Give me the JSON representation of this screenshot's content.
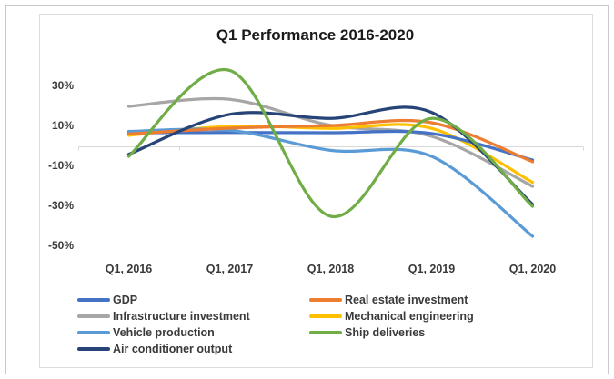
{
  "window": {
    "background": "#ffffff",
    "frame_border_color": "#c9c9c9",
    "chart_border_color": "#dcdcdc"
  },
  "chart_data": {
    "type": "line",
    "title": "Q1 Performance 2016-2020",
    "categories": [
      "Q1, 2016",
      "Q1, 2017",
      "Q1, 2018",
      "Q1, 2019",
      "Q1, 2020"
    ],
    "xlabel": "",
    "ylabel": "",
    "ylim": [
      -55,
      42
    ],
    "y_ticks": [
      {
        "label": "30%",
        "value": 30
      },
      {
        "label": "10%",
        "value": 10
      },
      {
        "label": "-10%",
        "value": -10
      },
      {
        "label": "-30%",
        "value": -30
      },
      {
        "label": "-50%",
        "value": -50
      }
    ],
    "grid": "zero-axis-line-only",
    "legend_position": "bottom",
    "legend_columns": 2,
    "smooth_lines": true,
    "colors": {
      "axis_line": "#d9d9d9",
      "tick_label": "#3a3a3a",
      "title": "#1a1a1a"
    },
    "series": [
      {
        "name": "GDP",
        "color": "#4472C4",
        "values": [
          6.8,
          6.9,
          6.8,
          6.4,
          -6.8
        ]
      },
      {
        "name": "Real estate investment",
        "color": "#ED7D31",
        "values": [
          6.2,
          9.1,
          10.4,
          11.8,
          -7.7
        ]
      },
      {
        "name": "Infrastructure investment",
        "color": "#A6A6A6",
        "values": [
          20,
          23.5,
          10.5,
          5,
          -20
        ]
      },
      {
        "name": "Mechanical engineering",
        "color": "#FFC000",
        "values": [
          5.5,
          10,
          9,
          9,
          -18
        ]
      },
      {
        "name": "Vehicle production",
        "color": "#5B9BD5",
        "values": [
          7.5,
          8,
          -2,
          -5,
          -45
        ]
      },
      {
        "name": "Ship deliveries",
        "color": "#70AD47",
        "values": [
          -5,
          38,
          -35,
          14,
          -30
        ]
      },
      {
        "name": "Air conditioner output",
        "color": "#264478",
        "values": [
          -4,
          16,
          14,
          17,
          -29
        ]
      }
    ]
  }
}
